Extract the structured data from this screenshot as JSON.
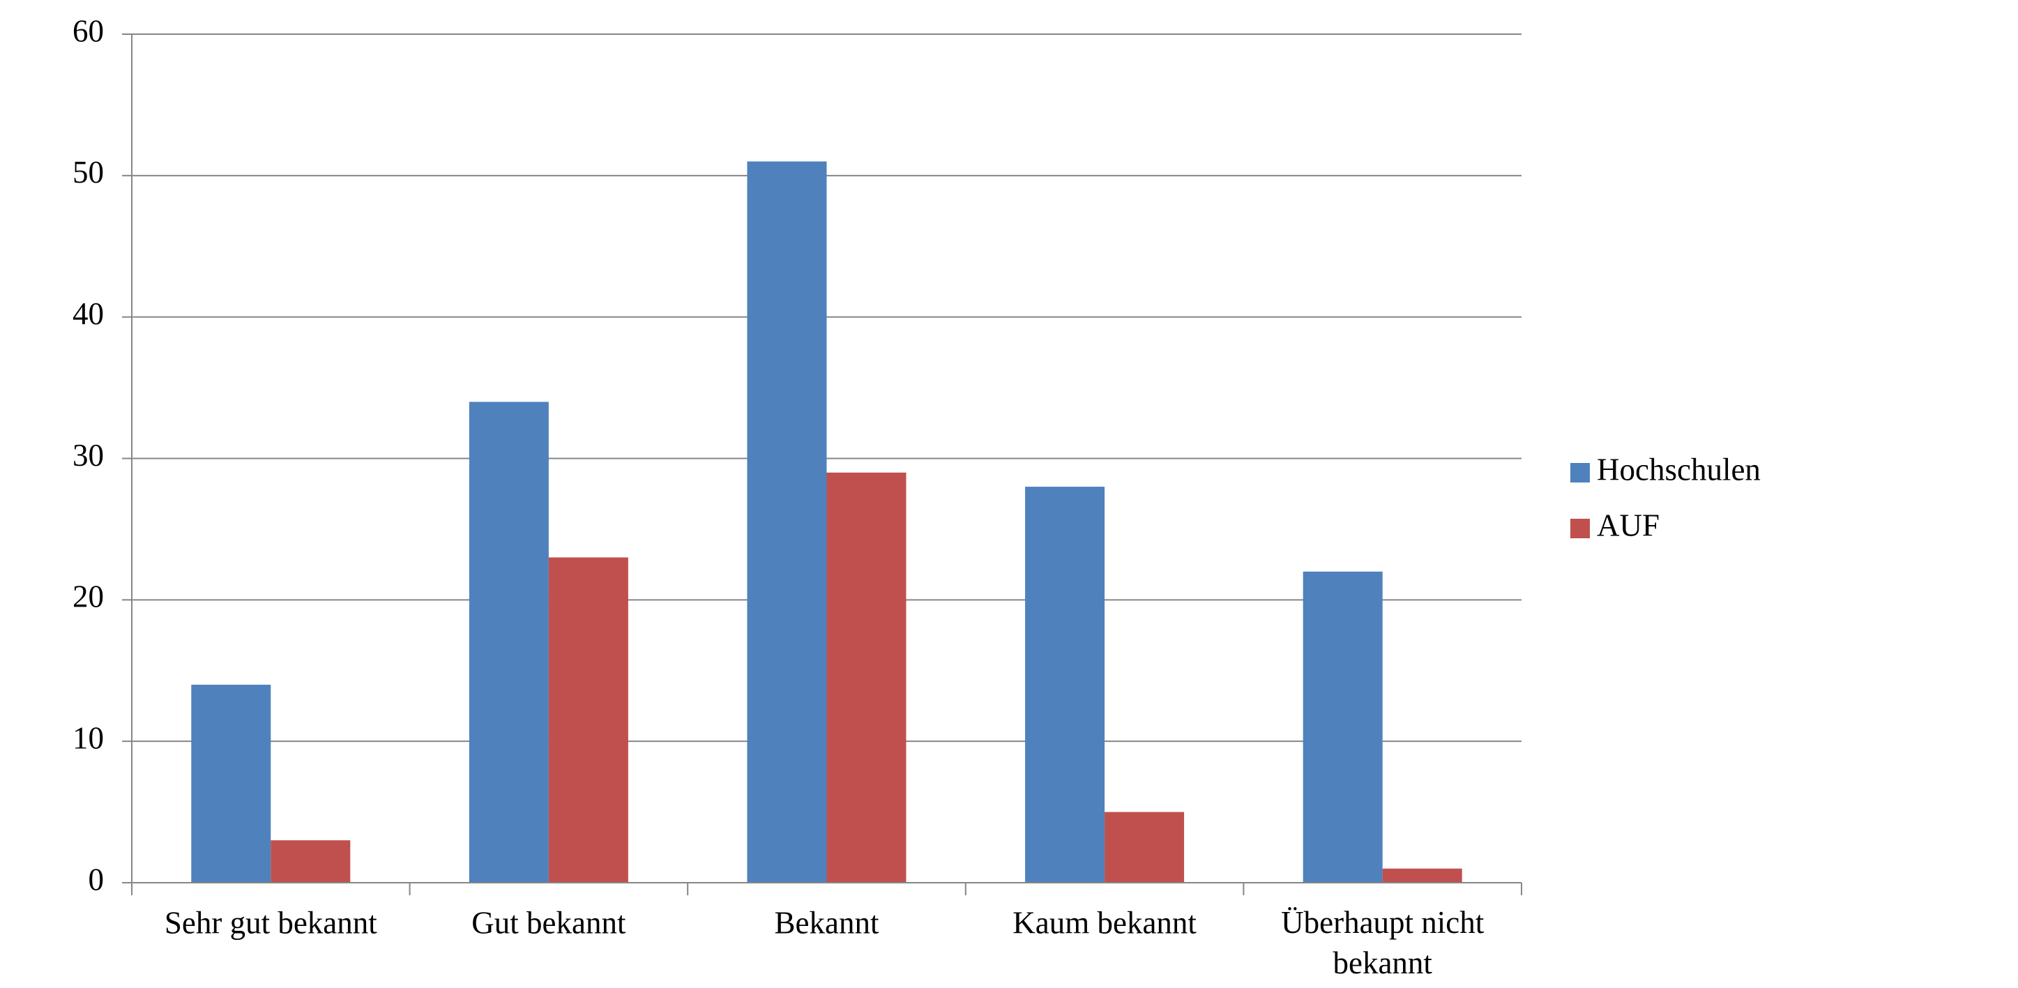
{
  "chart_data": {
    "type": "bar",
    "categories": [
      "Sehr gut bekannt",
      "Gut bekannt",
      "Bekannt",
      "Kaum bekannt",
      "Überhaupt nicht bekannt"
    ],
    "series": [
      {
        "name": "Hochschulen",
        "color": "#4f81bd",
        "values": [
          14,
          34,
          51,
          28,
          22
        ]
      },
      {
        "name": "AUF",
        "color": "#c0504d",
        "values": [
          3,
          23,
          29,
          5,
          1
        ]
      }
    ],
    "ylim": [
      0,
      60
    ],
    "yticks": [
      0,
      10,
      20,
      30,
      40,
      50,
      60
    ],
    "grid": true,
    "legend": "right"
  }
}
